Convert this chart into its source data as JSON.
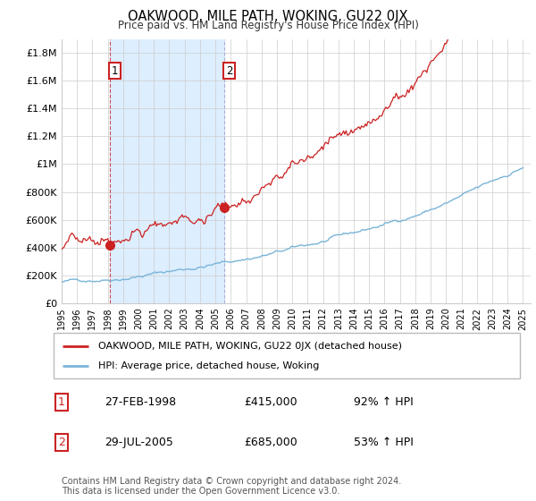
{
  "title": "OAKWOOD, MILE PATH, WOKING, GU22 0JX",
  "subtitle": "Price paid vs. HM Land Registry's House Price Index (HPI)",
  "legend_line1": "OAKWOOD, MILE PATH, WOKING, GU22 0JX (detached house)",
  "legend_line2": "HPI: Average price, detached house, Woking",
  "sale1_label": "1",
  "sale1_date": "27-FEB-1998",
  "sale1_price": "£415,000",
  "sale1_hpi": "92% ↑ HPI",
  "sale2_label": "2",
  "sale2_date": "29-JUL-2005",
  "sale2_price": "£685,000",
  "sale2_hpi": "53% ↑ HPI",
  "footer": "Contains HM Land Registry data © Crown copyright and database right 2024.\nThis data is licensed under the Open Government Licence v3.0.",
  "hpi_color": "#7ab5d8",
  "price_color": "#cc2222",
  "marker_color": "#cc2222",
  "sale1_x": 1998.15,
  "sale1_y": 415000,
  "sale2_x": 2005.57,
  "sale2_y": 685000,
  "ylim_min": 0,
  "ylim_max": 1900000,
  "yticks": [
    0,
    200000,
    400000,
    600000,
    800000,
    1000000,
    1200000,
    1400000,
    1600000,
    1800000
  ],
  "ytick_labels": [
    "£0",
    "£200K",
    "£400K",
    "£600K",
    "£800K",
    "£1M",
    "£1.2M",
    "£1.4M",
    "£1.6M",
    "£1.8M"
  ],
  "xlim_min": 1995,
  "xlim_max": 2025.5,
  "background_color": "#ffffff",
  "grid_color": "#cccccc",
  "shade_color": "#ddeeff"
}
